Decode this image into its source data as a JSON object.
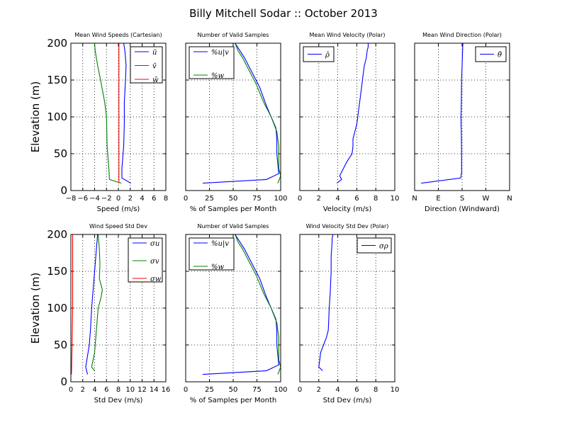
{
  "figure": {
    "title": "Billy Mitchell Sodar :: October 2013"
  },
  "colors": {
    "blue": "#0000ff",
    "green": "#008000",
    "red": "#ff0000"
  },
  "chart_data": [
    {
      "id": "mean-wind-speeds",
      "type": "line",
      "title": "Mean Wind Speeds (Cartesian)",
      "xlabel": "Speed (m/s)",
      "ylabel": "Elevation (m)",
      "xlim": [
        -8,
        8
      ],
      "ylim": [
        0,
        200
      ],
      "xticks": [
        "−8",
        "−6",
        "−4",
        "−2",
        "0",
        "2",
        "4",
        "6",
        "8"
      ],
      "yticks": [
        "0",
        "50",
        "100",
        "150",
        "200"
      ],
      "show_yticks": true,
      "grid": true,
      "legend": "top-right",
      "series": [
        {
          "name": "ū",
          "color": "#0000ff",
          "x": [
            2.1,
            0.6,
            0.6,
            0.9,
            1.0,
            1.0,
            1.2,
            1.3,
            1.2,
            1.1,
            0.9
          ],
          "y": [
            10,
            17,
            30,
            60,
            90,
            120,
            150,
            170,
            180,
            190,
            200
          ]
        },
        {
          "name": "v̄",
          "color": "#008000",
          "x": [
            0.5,
            -1.5,
            -1.6,
            -1.9,
            -2.0,
            -2.3,
            -3.0,
            -3.5,
            -3.9,
            -4.0
          ],
          "y": [
            10,
            15,
            30,
            60,
            100,
            120,
            150,
            170,
            190,
            200
          ]
        },
        {
          "name": "w̄",
          "color": "#ff0000",
          "x": [
            0.1,
            0.1,
            0.1,
            0.1,
            0.1
          ],
          "y": [
            10,
            50,
            100,
            150,
            200
          ]
        }
      ]
    },
    {
      "id": "valid-samples-top",
      "type": "line",
      "title": "Number of Valid Samples",
      "xlabel": "% of Samples per Month",
      "xlim": [
        0,
        100
      ],
      "ylim": [
        0,
        200
      ],
      "xticks": [
        "0",
        "25",
        "50",
        "75",
        "100"
      ],
      "show_yticks": false,
      "grid": true,
      "legend": "top-left",
      "series": [
        {
          "name": "%u|v",
          "color": "#0000ff",
          "x": [
            18,
            85,
            98,
            96,
            96,
            95,
            90,
            85,
            78,
            70,
            62,
            57,
            52
          ],
          "y": [
            10,
            15,
            23,
            50,
            70,
            85,
            100,
            115,
            140,
            160,
            180,
            190,
            200
          ]
        },
        {
          "name": "%w",
          "color": "#008000",
          "x": [
            97,
            100,
            98,
            98,
            96,
            90,
            82,
            74,
            66,
            60,
            55,
            52
          ],
          "y": [
            10,
            20,
            30,
            60,
            80,
            100,
            120,
            145,
            165,
            180,
            190,
            200
          ]
        }
      ]
    },
    {
      "id": "mean-wind-velocity",
      "type": "line",
      "title": "Mean Wind Velocity (Polar)",
      "xlabel": "Velocity (m/s)",
      "xlim": [
        0,
        10
      ],
      "ylim": [
        0,
        200
      ],
      "xticks": [
        "0",
        "2",
        "4",
        "6",
        "8",
        "10"
      ],
      "show_yticks": false,
      "grid": true,
      "legend": "top-left",
      "series": [
        {
          "name": "ρ̄",
          "color": "#0000ff",
          "x": [
            3.9,
            4.4,
            4.2,
            4.6,
            5.0,
            5.5,
            5.6,
            5.6,
            5.8,
            6.0,
            6.2,
            6.4,
            6.6,
            6.8,
            7.0,
            7.1,
            7.2,
            7.2
          ],
          "y": [
            10,
            15,
            20,
            30,
            40,
            50,
            60,
            70,
            80,
            90,
            110,
            130,
            150,
            170,
            180,
            190,
            195,
            200
          ]
        }
      ]
    },
    {
      "id": "mean-wind-direction",
      "type": "line",
      "title": "Mean Wind Direction (Polar)",
      "xlabel": "Direction (Windward)",
      "xlim": [
        0,
        360
      ],
      "ylim": [
        0,
        200
      ],
      "xticks": [
        "N",
        "E",
        "S",
        "W",
        "N"
      ],
      "show_yticks": false,
      "grid": true,
      "legend": "top-right",
      "series": [
        {
          "name": "θ̄",
          "color": "#0000ff",
          "x": [
            25,
            175,
            178,
            178,
            177,
            176,
            176,
            177,
            178,
            180,
            182,
            183
          ],
          "y": [
            10,
            17,
            25,
            50,
            80,
            90,
            100,
            120,
            150,
            170,
            190,
            200
          ]
        }
      ]
    },
    {
      "id": "wind-speed-std-dev",
      "type": "line",
      "title": "Wind Speed Std Dev",
      "xlabel": "Std Dev (m/s)",
      "ylabel": "Elevation (m)",
      "xlim": [
        0,
        16
      ],
      "ylim": [
        0,
        200
      ],
      "xticks": [
        "0",
        "2",
        "4",
        "6",
        "8",
        "10",
        "12",
        "14",
        "16"
      ],
      "yticks": [
        "0",
        "50",
        "100",
        "150",
        "200"
      ],
      "show_yticks": true,
      "grid": true,
      "legend": "top-right",
      "series": [
        {
          "name": "σu",
          "color": "#0000ff",
          "x": [
            2.8,
            2.5,
            3.1,
            3.3,
            3.5,
            3.7,
            4.0,
            4.3,
            4.5
          ],
          "y": [
            10,
            20,
            50,
            70,
            100,
            120,
            150,
            180,
            200
          ]
        },
        {
          "name": "σv",
          "color": "#008000",
          "x": [
            4.0,
            3.5,
            4.0,
            4.3,
            4.6,
            5.1,
            5.3,
            4.8,
            4.9,
            4.8,
            4.6
          ],
          "y": [
            15,
            20,
            40,
            70,
            100,
            115,
            125,
            140,
            160,
            180,
            200
          ]
        },
        {
          "name": "σw",
          "color": "#ff0000",
          "x": [
            0.1,
            0.2,
            0.3,
            0.3,
            0.3
          ],
          "y": [
            10,
            50,
            100,
            150,
            200
          ]
        }
      ]
    },
    {
      "id": "valid-samples-bottom",
      "type": "line",
      "title": "Number of Valid Samples",
      "xlabel": "% of Samples per Month",
      "xlim": [
        0,
        100
      ],
      "ylim": [
        0,
        200
      ],
      "xticks": [
        "0",
        "25",
        "50",
        "75",
        "100"
      ],
      "show_yticks": false,
      "grid": true,
      "legend": "top-left",
      "series": [
        {
          "name": "%u|v",
          "color": "#0000ff",
          "x": [
            18,
            85,
            98,
            96,
            96,
            95,
            90,
            85,
            78,
            70,
            62,
            57,
            52
          ],
          "y": [
            10,
            15,
            23,
            50,
            70,
            85,
            100,
            115,
            140,
            160,
            180,
            190,
            200
          ]
        },
        {
          "name": "%w",
          "color": "#008000",
          "x": [
            97,
            100,
            98,
            98,
            96,
            90,
            82,
            74,
            66,
            60,
            55,
            52
          ],
          "y": [
            10,
            20,
            30,
            60,
            80,
            100,
            120,
            145,
            165,
            180,
            190,
            200
          ]
        }
      ]
    },
    {
      "id": "wind-velocity-std-dev",
      "type": "line",
      "title": "Wind Velocity Std Dev (Polar)",
      "xlabel": "Std Dev (m/s)",
      "xlim": [
        0,
        10
      ],
      "ylim": [
        0,
        200
      ],
      "xticks": [
        "0",
        "2",
        "4",
        "6",
        "8",
        "10"
      ],
      "show_yticks": false,
      "grid": true,
      "legend": "top-right",
      "series": [
        {
          "name": "σρ",
          "color": "#0000ff",
          "x": [
            2.4,
            2.0,
            2.2,
            2.8,
            3.0,
            3.1,
            3.2,
            3.3,
            3.3,
            3.4,
            3.4,
            3.5
          ],
          "y": [
            15,
            20,
            40,
            60,
            70,
            100,
            120,
            150,
            170,
            190,
            195,
            200
          ]
        }
      ]
    }
  ]
}
